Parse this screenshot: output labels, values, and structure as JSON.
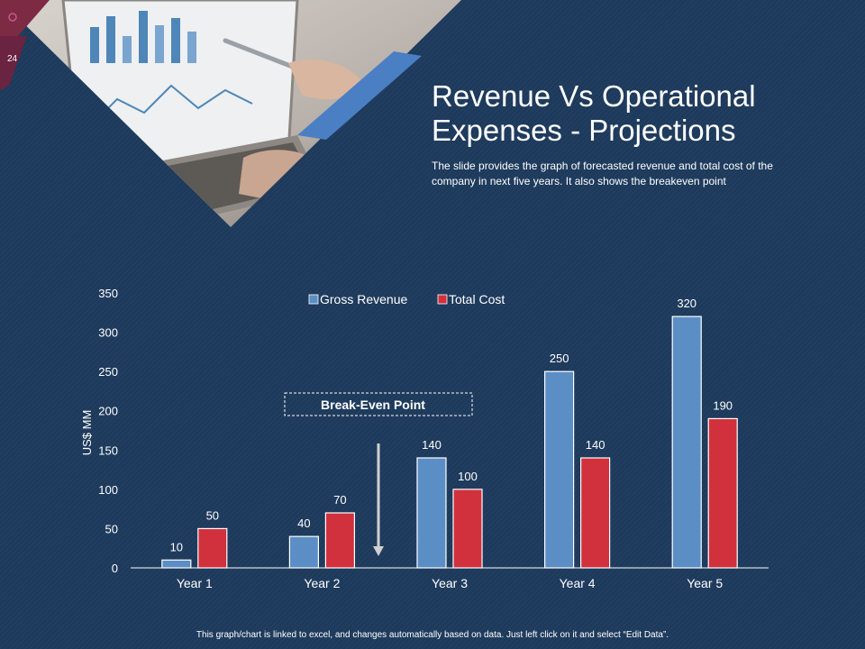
{
  "slide": {
    "page_number": "24",
    "title": "Revenue Vs Operational Expenses - Projections",
    "subtitle": "The slide provides the graph of forecasted revenue and total cost of the company in next five years. It also shows the breakeven point",
    "footer": "This graph/chart is linked to excel, and changes automatically based on data. Just left click on it and select “Edit Data”."
  },
  "colors": {
    "background": "#1d3a5c",
    "revenue": "#5b8ec4",
    "cost": "#d0313c",
    "accent_blue": "#4a7fc4",
    "accent_maroon": "#7d2a45"
  },
  "chart_data": {
    "type": "bar",
    "title": "",
    "xlabel": "",
    "ylabel": "US$ MM",
    "ylim": [
      0,
      350
    ],
    "yticks": [
      0,
      50,
      100,
      150,
      200,
      250,
      300,
      350
    ],
    "categories": [
      "Year 1",
      "Year 2",
      "Year 3",
      "Year 4",
      "Year 5"
    ],
    "series": [
      {
        "name": "Gross Revenue",
        "color": "#5b8ec4",
        "values": [
          10,
          40,
          140,
          250,
          320
        ]
      },
      {
        "name": "Total Cost",
        "color": "#d0313c",
        "values": [
          50,
          70,
          100,
          140,
          190
        ]
      }
    ],
    "legend": "top-center",
    "annotation": {
      "text": "Break-Even Point",
      "category": "Year 3"
    }
  }
}
